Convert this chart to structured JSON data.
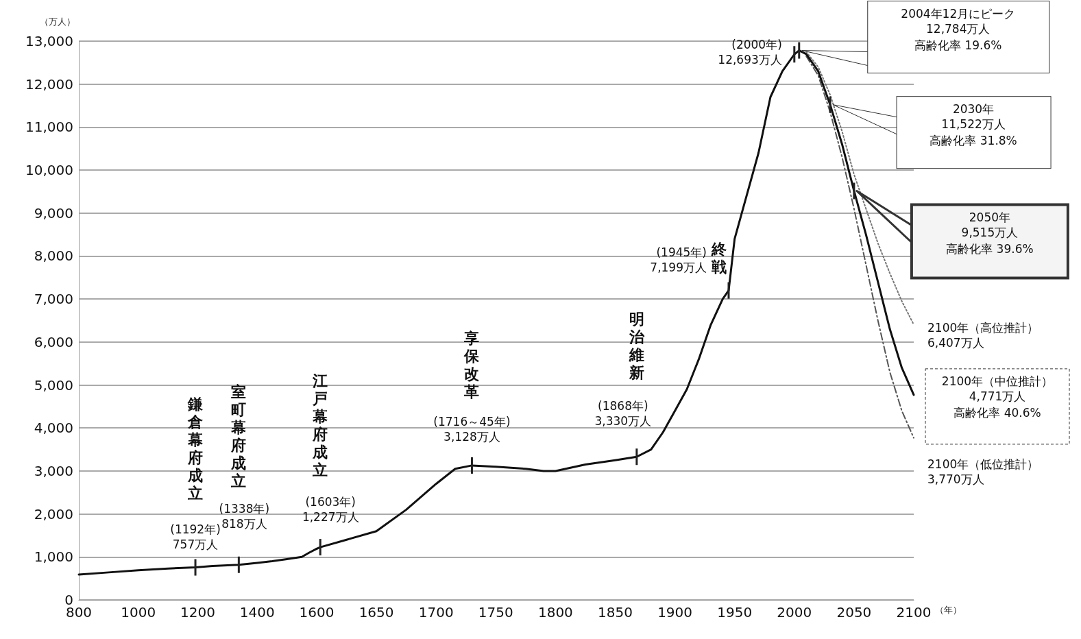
{
  "chart_data": [
    {
      "type": "line",
      "ylabel": "（万人）",
      "xlim": [
        800,
        1600
      ],
      "xticks": [
        800,
        1000,
        1200,
        1400
      ],
      "ylim": [
        0,
        13000
      ],
      "yticks": [
        0,
        {
          "value": 1000,
          "label": "1,000"
        },
        {
          "value": 2000,
          "label": "2,000"
        },
        {
          "value": 3000,
          "label": "3,000"
        },
        {
          "value": 4000,
          "label": "4,000"
        },
        {
          "value": 5000,
          "label": "5,000"
        },
        {
          "value": 6000,
          "label": "6,000"
        },
        {
          "value": 7000,
          "label": "7,000"
        },
        {
          "value": 8000,
          "label": "8,000"
        },
        {
          "value": 9000,
          "label": "9,000"
        },
        {
          "value": 10000,
          "label": "10,000"
        },
        {
          "value": 11000,
          "label": "11,000"
        },
        {
          "value": 12000,
          "label": "12,000"
        },
        {
          "value": 13000,
          "label": "13,000"
        }
      ],
      "grid": "y",
      "marker": "none",
      "series": [
        {
          "color": "#111111",
          "line_style": "solid",
          "x": [
            800,
            900,
            1000,
            1100,
            1192,
            1250,
            1338,
            1400,
            1450,
            1500,
            1550,
            1575,
            1600
          ],
          "values": [
            590,
            640,
            690,
            730,
            757,
            790,
            818,
            860,
            900,
            950,
            1000,
            1100,
            1190
          ]
        }
      ],
      "annotations": [
        "鎌倉幕府成立",
        "(1192年)\n757万人",
        "室町幕府成立",
        "(1338年)\n818万人"
      ]
    },
    {
      "type": "line",
      "xlabel": "（年）",
      "xlim": [
        1600,
        2100
      ],
      "xticks": [
        1600,
        1650,
        1700,
        1750,
        1800,
        1850,
        1900,
        1950,
        2000,
        2050,
        2100
      ],
      "ylim": [
        0,
        13000
      ],
      "yticks": [
        0,
        1000,
        2000,
        3000,
        4000,
        5000,
        6000,
        7000,
        8000,
        9000,
        10000,
        11000,
        12000,
        13000
      ],
      "tick_labels": "x",
      "grid": "y",
      "marker": "none",
      "series": [
        {
          "color": "#111111",
          "line_style": "solid",
          "x": [
            1600,
            1603,
            1625,
            1650,
            1675,
            1700,
            1716,
            1730,
            1750,
            1775,
            1790,
            1800,
            1825,
            1850,
            1868,
            1880,
            1890,
            1900,
            1910,
            1920,
            1930,
            1940,
            1945,
            1950,
            1960,
            1970,
            1980,
            1990,
            2000,
            2004,
            2010,
            2020,
            2030,
            2040,
            2050,
            2060,
            2070,
            2080,
            2090,
            2100
          ],
          "values": [
            1190,
            1227,
            1400,
            1600,
            2100,
            2700,
            3050,
            3128,
            3100,
            3050,
            3000,
            3000,
            3150,
            3250,
            3330,
            3500,
            3900,
            4400,
            4900,
            5600,
            6400,
            7000,
            7199,
            8400,
            9400,
            10400,
            11700,
            12300,
            12693,
            12784,
            12700,
            12300,
            11522,
            10600,
            9515,
            8500,
            7400,
            6300,
            5400,
            4771
          ]
        },
        {
          "color": "#777777",
          "line_style": "dotted",
          "x": [
            2010,
            2020,
            2030,
            2040,
            2050,
            2060,
            2070,
            2080,
            2090,
            2100
          ],
          "values": [
            12750,
            12400,
            11750,
            10900,
            9900,
            9100,
            8300,
            7600,
            6950,
            6407
          ]
        },
        {
          "color": "#555555",
          "line_style": "dashed",
          "x": [
            2010,
            2020,
            2030,
            2040,
            2050,
            2060,
            2070,
            2080,
            2090,
            2100
          ],
          "values": [
            12650,
            12200,
            11350,
            10300,
            9100,
            7800,
            6500,
            5300,
            4400,
            3770
          ]
        }
      ],
      "annotations": [
        "江戸幕府成立",
        "(1603年)\n1,227万人",
        "享保改革",
        "(1716～45年)\n3,128万人",
        "明治維新",
        "(1868年)\n3,330万人",
        "終戦",
        "(1945年)\n7,199万人",
        "(2000年)\n12,693万人",
        "2004年12月にピーク\n12,784万人",
        "高齢化率 19.6%",
        "2030年\n11,522万人",
        "高齢化率 31.8%",
        "2050年\n9,515万人",
        "高齢化率 39.6%",
        "2100年（高位推計）\n6,407万人",
        "2100年（中位推計）\n4,771万人",
        "高齢化率 40.6%",
        "2100年（低位推計）\n3,770万人"
      ]
    }
  ]
}
